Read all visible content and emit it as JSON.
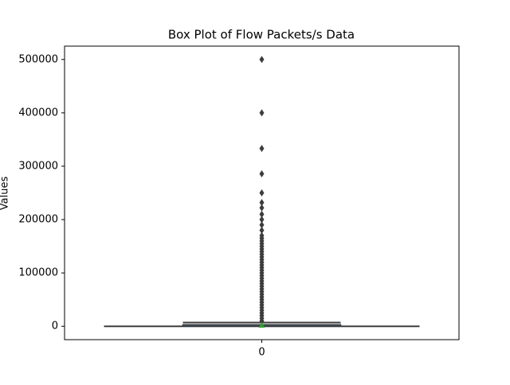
{
  "chart_data": {
    "type": "box",
    "title": "Box Plot of Flow Packets/s Data",
    "ylabel": "Values",
    "categories": [
      "0"
    ],
    "boxes": [
      {
        "whislo": 0,
        "q1": 0,
        "median": 100,
        "q3": 3000,
        "whishi": 7000,
        "mean": 2000,
        "fliers": [
          500000,
          400000,
          333333,
          285714,
          250000,
          232000,
          222000,
          210000,
          200000,
          190000,
          180000,
          170000,
          165000,
          160000,
          155000,
          150000,
          145000,
          140000,
          135000,
          130000,
          125000,
          120000,
          115000,
          110000,
          105000,
          100000,
          95000,
          90000,
          85000,
          80000,
          75000,
          70000,
          65000,
          60000,
          55000,
          50000,
          45000,
          40000,
          35000,
          30000,
          25000,
          20000,
          15000,
          10000
        ]
      }
    ],
    "color": "#3274a1",
    "line_color": "#3d3d3d",
    "mean_color": "#2ca02c",
    "ylim": [
      -25000,
      525000
    ],
    "yticks": [
      0,
      100000,
      200000,
      300000,
      400000,
      500000
    ],
    "grid": false
  }
}
